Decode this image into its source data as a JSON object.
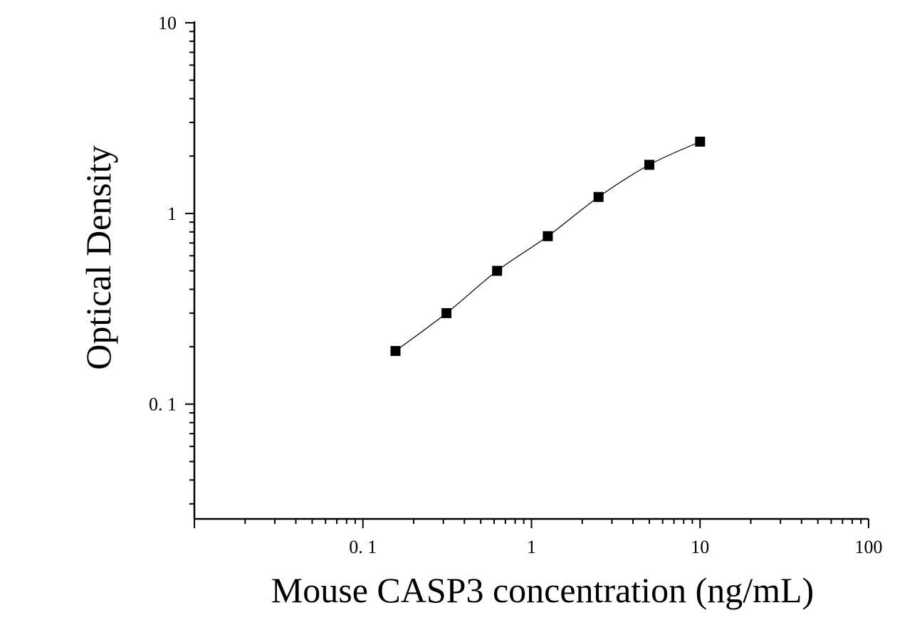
{
  "chart_data": {
    "type": "scatter",
    "title": "",
    "xlabel": "Mouse CASP3 concentration (ng/mL)",
    "ylabel": "Optical Density",
    "xscale": "log",
    "yscale": "log",
    "xlim": [
      0.01,
      100
    ],
    "ylim": [
      0.025,
      10
    ],
    "x_ticks": [
      {
        "value": 0.1,
        "label": "0. 1"
      },
      {
        "value": 1,
        "label": "1"
      },
      {
        "value": 10,
        "label": "10"
      },
      {
        "value": 100,
        "label": "100"
      }
    ],
    "y_ticks": [
      {
        "value": 0.1,
        "label": "0. 1"
      },
      {
        "value": 1,
        "label": "1"
      },
      {
        "value": 10,
        "label": "10"
      }
    ],
    "grid": false,
    "legend": "none",
    "marker": "square",
    "series": [
      {
        "x": [
          0.156,
          0.313,
          0.625,
          1.25,
          2.5,
          5,
          10
        ],
        "y": [
          0.19,
          0.3,
          0.5,
          0.76,
          1.22,
          1.8,
          2.38
        ],
        "fit": "smooth curve"
      }
    ],
    "colors": {
      "markers": "#000000",
      "line": "#000000",
      "axes": "#000000"
    }
  }
}
